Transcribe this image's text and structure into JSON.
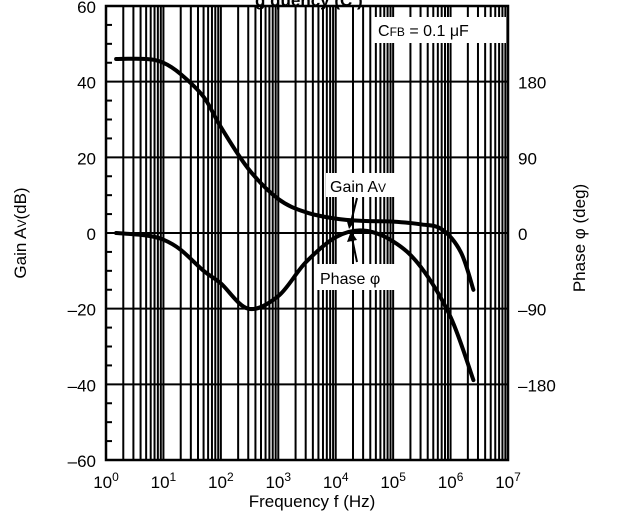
{
  "title_fragment": "g                                        quency (C        )",
  "chart_data": {
    "type": "line",
    "xscale": "log",
    "xlim": [
      "10^0",
      "10^7"
    ],
    "xlabel": "Frequency f (Hz)",
    "ylabel_left": "Gain AV(dB)",
    "ylabel_right": "Phase φ (deg)",
    "ylim_left": [
      -60,
      60
    ],
    "ylim_right": [
      -270,
      270
    ],
    "x_ticks": [
      {
        "base": "10",
        "exp": "0"
      },
      {
        "base": "10",
        "exp": "1"
      },
      {
        "base": "10",
        "exp": "2"
      },
      {
        "base": "10",
        "exp": "3"
      },
      {
        "base": "10",
        "exp": "4"
      },
      {
        "base": "10",
        "exp": "5"
      },
      {
        "base": "10",
        "exp": "6"
      },
      {
        "base": "10",
        "exp": "7"
      }
    ],
    "y_ticks_left": [
      {
        "value": 60,
        "label": "60"
      },
      {
        "value": 40,
        "label": "40"
      },
      {
        "value": 20,
        "label": "20"
      },
      {
        "value": 0,
        "label": "0"
      },
      {
        "value": -20,
        "label": "–20"
      },
      {
        "value": -40,
        "label": "–40"
      },
      {
        "value": -60,
        "label": "–60"
      }
    ],
    "y_ticks_right": [
      {
        "value": 180,
        "label": "180"
      },
      {
        "value": 90,
        "label": "90"
      },
      {
        "value": 0,
        "label": "0"
      },
      {
        "value": -90,
        "label": "–90"
      },
      {
        "value": -180,
        "label": "–180"
      }
    ],
    "grid": true,
    "annotation": "CFB = 0.1 μF",
    "series": [
      {
        "name": "Gain AV",
        "axis": "left",
        "x": [
          1.5,
          5,
          10,
          20,
          50,
          100,
          300,
          1000,
          3000,
          10000,
          30000,
          100000,
          300000,
          700000,
          1500000,
          2500000
        ],
        "y": [
          46,
          46,
          45,
          42,
          36,
          28,
          17,
          9,
          5.5,
          3.8,
          3.2,
          3,
          2.3,
          1,
          -5,
          -15
        ]
      },
      {
        "name": "Phase φ",
        "axis": "right",
        "x": [
          1.5,
          5,
          10,
          20,
          50,
          100,
          300,
          1000,
          3000,
          10000,
          30000,
          100000,
          300000,
          1000000,
          2500000
        ],
        "y": [
          0,
          -3,
          -8,
          -20,
          -45,
          -60,
          -90,
          -75,
          -35,
          -5,
          3,
          -10,
          -40,
          -100,
          -175
        ]
      }
    ],
    "callouts": [
      {
        "text": "Gain AV",
        "target_series": "Gain AV"
      },
      {
        "text": "Phase φ",
        "target_series": "Phase φ"
      }
    ]
  }
}
